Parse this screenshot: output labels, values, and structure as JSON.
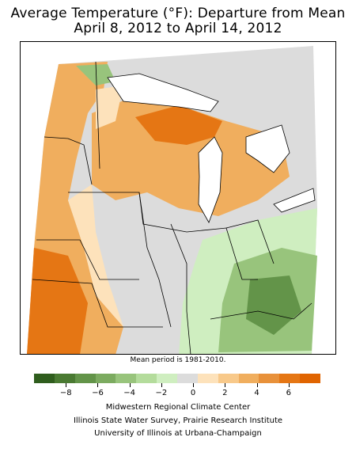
{
  "title": {
    "line1": "Average Temperature (°F): Departure from Mean",
    "line2": "April 8, 2012 to April 14, 2012"
  },
  "note": "Mean period is 1981-2010.",
  "legend": {
    "colors": [
      "#2f5d1d",
      "#4a7a32",
      "#639449",
      "#7cab60",
      "#98c47c",
      "#b4dc9c",
      "#cfeec0",
      "#dcdcdc",
      "#fde2bb",
      "#f8c98a",
      "#f0ae5e",
      "#e8913a",
      "#e57614",
      "#e06400"
    ],
    "tick_labels": [
      "−8",
      "−6",
      "−4",
      "−2",
      "0",
      "2",
      "4",
      "6"
    ],
    "tick_values": [
      -8,
      -6,
      -4,
      -2,
      0,
      2,
      4,
      6
    ],
    "range": [
      -10,
      8
    ]
  },
  "credits": {
    "line1": "Midwestern Regional Climate Center",
    "line2": "Illinois State Water Survey, Prairie Research Institute",
    "line3": "University of Illinois at Urbana-Champaign"
  },
  "map": {
    "colors": {
      "warm_light": "#fde2bb",
      "warm_mid": "#f0ae5e",
      "warm_strong": "#e57614",
      "neutral": "#dcdcdc",
      "cool_light": "#cfeec0",
      "cool_mid": "#98c47c",
      "cool_strong": "#639449",
      "water": "#ffffff",
      "border": "#000000"
    }
  }
}
